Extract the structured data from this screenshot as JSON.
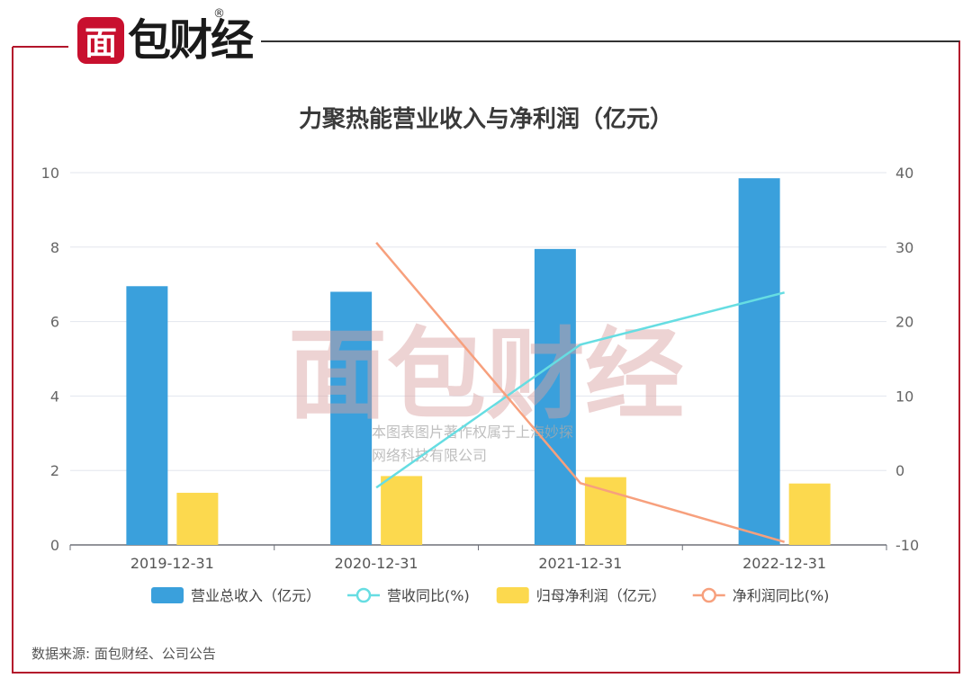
{
  "brand": {
    "logo_text": "面包财经",
    "logo_first": "面",
    "logo_rest": "包财经",
    "registered_mark": "®",
    "accent_color": "#b3152b"
  },
  "watermark": {
    "logo_text": "面包财经",
    "line1": "本图表图片著作权属于上海妙探",
    "line2": "网络科技有限公司"
  },
  "chart_data": {
    "type": "bar",
    "title": "力聚热能营业收入与净利润（亿元）",
    "categories": [
      "2019-12-31",
      "2020-12-31",
      "2021-12-31",
      "2022-12-31"
    ],
    "y_left": {
      "ticks": [
        0,
        2,
        4,
        6,
        8,
        10
      ],
      "range": [
        0,
        10
      ]
    },
    "y_right": {
      "ticks": [
        -10,
        0,
        10,
        20,
        30,
        40
      ],
      "range": [
        -10,
        40
      ]
    },
    "series": [
      {
        "name": "营业总收入（亿元）",
        "kind": "bar",
        "axis": "left",
        "color": "#3aa0dc",
        "values": [
          6.95,
          6.8,
          7.95,
          9.85
        ]
      },
      {
        "name": "营收同比(%)",
        "kind": "line",
        "axis": "right",
        "color": "#66dde2",
        "values": [
          null,
          -2.3,
          16.9,
          23.9
        ]
      },
      {
        "name": "归母净利润（亿元）",
        "kind": "bar",
        "axis": "left",
        "color": "#fcd94e",
        "values": [
          1.4,
          1.85,
          1.82,
          1.65
        ]
      },
      {
        "name": "净利润同比(%)",
        "kind": "line",
        "axis": "right",
        "color": "#f7a07d",
        "values": [
          null,
          30.6,
          -1.7,
          -9.6
        ]
      }
    ],
    "legend_position": "bottom",
    "grid": true
  },
  "source": "数据来源: 面包财经、公司公告"
}
